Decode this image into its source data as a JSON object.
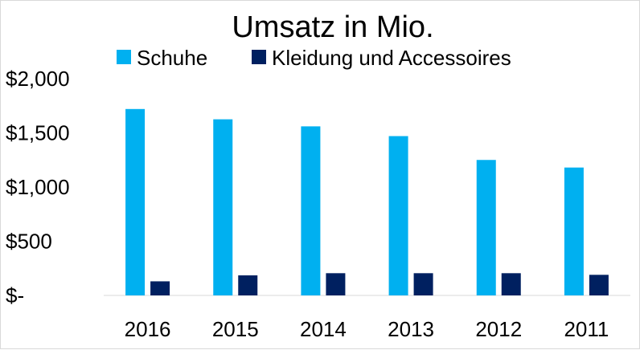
{
  "chart_data": {
    "type": "bar",
    "title": "Umsatz in Mio.",
    "xlabel": "",
    "ylabel": "",
    "categories": [
      "2016",
      "2015",
      "2014",
      "2013",
      "2012",
      "2011"
    ],
    "series": [
      {
        "name": "Schuhe",
        "color": "#00b0f0",
        "values": [
          1720,
          1625,
          1560,
          1470,
          1250,
          1180
        ]
      },
      {
        "name": "Kleidung und Accessoires",
        "color": "#002060",
        "values": [
          130,
          185,
          205,
          205,
          205,
          190
        ]
      }
    ],
    "ylim": [
      0,
      2000
    ],
    "yticks": [
      0,
      500,
      1000,
      1500,
      2000
    ],
    "ytick_labels": [
      "$-",
      "$500",
      "$1,000",
      "$1,500",
      "$2,000"
    ],
    "grid": false,
    "legend_position": "top"
  }
}
